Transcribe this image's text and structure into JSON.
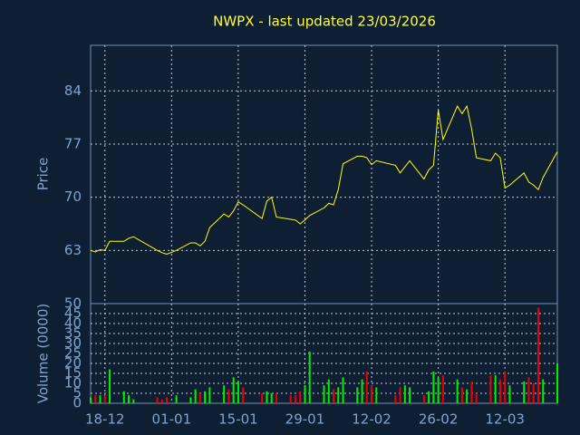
{
  "chart_data": [
    {
      "type": "line",
      "title": "NWPX - last updated 23/03/2026",
      "ylabel": "Price",
      "color": "#ffff00",
      "grid": true,
      "x": [
        "15-12",
        "16-12",
        "17-12",
        "18-12",
        "19-12",
        "22-12",
        "23-12",
        "24-12",
        "29-12",
        "30-12",
        "31-12",
        "02-01",
        "05-01",
        "06-01",
        "07-01",
        "08-01",
        "09-01",
        "12-01",
        "13-01",
        "14-01",
        "15-01",
        "16-01",
        "20-01",
        "21-01",
        "22-01",
        "23-01",
        "26-01",
        "27-01",
        "28-01",
        "29-01",
        "30-01",
        "02-02",
        "03-02",
        "04-02",
        "05-02",
        "06-02",
        "09-02",
        "10-02",
        "11-02",
        "12-02",
        "13-02",
        "17-02",
        "18-02",
        "19-02",
        "20-02",
        "23-02",
        "24-02",
        "25-02",
        "26-02",
        "27-02",
        "02-03",
        "03-03",
        "04-03",
        "05-03",
        "06-03",
        "09-03",
        "10-03",
        "11-03",
        "12-03",
        "13-03",
        "16-03",
        "17-03",
        "18-03",
        "19-03",
        "20-03",
        "23-03"
      ],
      "values": [
        63.0,
        62.8,
        63.1,
        63.0,
        64.2,
        64.2,
        64.6,
        64.8,
        63.0,
        62.7,
        62.5,
        63.0,
        64.0,
        64.0,
        63.6,
        64.2,
        66.0,
        67.8,
        67.4,
        68.2,
        69.4,
        69.0,
        67.2,
        69.5,
        70.0,
        67.4,
        67.1,
        67.0,
        66.5,
        67.0,
        67.6,
        68.6,
        69.2,
        69.0,
        71.0,
        74.4,
        75.4,
        75.4,
        75.2,
        74.3,
        74.8,
        74.2,
        73.2,
        74.0,
        74.8,
        72.4,
        73.6,
        74.2,
        81.5,
        77.6,
        82.0,
        81.0,
        82.0,
        79.0,
        75.2,
        74.8,
        75.8,
        75.2,
        71.2,
        71.6,
        73.2,
        72.0,
        71.6,
        71.0,
        72.6,
        76.0
      ],
      "xlim": [
        "15-12",
        "23-03"
      ],
      "xticks": [
        "18-12",
        "01-01",
        "15-01",
        "29-01",
        "12-02",
        "26-02",
        "12-03"
      ],
      "ylim": [
        56,
        90
      ],
      "yticks": [
        63,
        70,
        77,
        84
      ]
    },
    {
      "type": "bar",
      "ylabel": "Volume (0000)",
      "up_color": "#00ee00",
      "down_color": "#ee0000",
      "grid": true,
      "values": [
        3,
        4,
        4,
        4,
        17,
        6,
        4,
        2,
        3,
        2,
        3,
        4,
        3,
        7,
        5,
        6,
        8,
        9,
        7,
        13,
        11,
        8,
        5,
        6,
        5,
        5,
        4,
        4,
        6,
        9,
        26,
        9,
        12,
        7,
        8,
        13,
        8,
        12,
        16,
        9,
        8,
        4,
        8,
        9,
        8,
        4,
        6,
        16,
        13,
        14,
        12,
        8,
        7,
        11,
        5,
        14,
        14,
        12,
        16,
        9,
        11,
        13,
        10,
        48,
        12,
        20
      ],
      "ylim": [
        0,
        50
      ],
      "yticks": [
        0,
        5,
        10,
        15,
        20,
        25,
        30,
        35,
        40,
        45,
        50
      ]
    }
  ]
}
